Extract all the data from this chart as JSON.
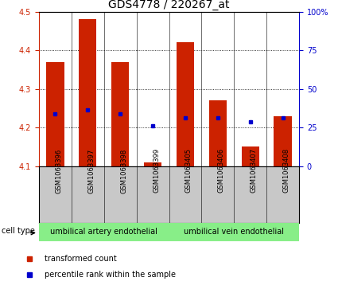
{
  "title": "GDS4778 / 220267_at",
  "samples": [
    "GSM1063396",
    "GSM1063397",
    "GSM1063398",
    "GSM1063399",
    "GSM1063405",
    "GSM1063406",
    "GSM1063407",
    "GSM1063408"
  ],
  "bar_bottoms": [
    4.1,
    4.1,
    4.1,
    4.1,
    4.1,
    4.1,
    4.1,
    4.1
  ],
  "bar_tops": [
    4.37,
    4.48,
    4.37,
    4.11,
    4.42,
    4.27,
    4.15,
    4.23
  ],
  "percentile_values": [
    4.235,
    4.245,
    4.235,
    4.205,
    4.225,
    4.225,
    4.215,
    4.225
  ],
  "ylim": [
    4.1,
    4.5
  ],
  "yticks_left": [
    4.1,
    4.2,
    4.3,
    4.4,
    4.5
  ],
  "yticks_right": [
    0,
    25,
    50,
    75,
    100
  ],
  "bar_color": "#cc2200",
  "percentile_color": "#0000cc",
  "cell_type_groups": [
    {
      "label": "umbilical artery endothelial",
      "indices": [
        0,
        1,
        2,
        3
      ],
      "color": "#88ee88"
    },
    {
      "label": "umbilical vein endothelial",
      "indices": [
        4,
        5,
        6,
        7
      ],
      "color": "#88ee88"
    }
  ],
  "legend_items": [
    {
      "label": "transformed count",
      "color": "#cc2200"
    },
    {
      "label": "percentile rank within the sample",
      "color": "#0000cc"
    }
  ],
  "cell_type_label": "cell type",
  "xlabels_bg": "#c8c8c8",
  "title_fontsize": 10,
  "tick_fontsize": 7,
  "sample_fontsize": 6,
  "legend_fontsize": 7,
  "cell_type_fontsize": 7,
  "cell_label_fontsize": 7
}
